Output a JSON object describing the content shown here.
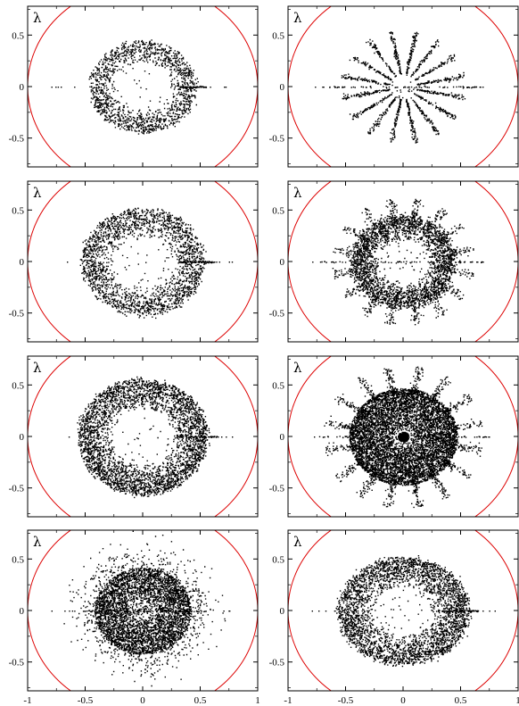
{
  "chart_data": {
    "type": "scatter",
    "panel_label": "λ",
    "grid": false,
    "layout": {
      "rows": 4,
      "cols": 2
    },
    "xlim": [
      -1,
      1
    ],
    "ylim": [
      -0.78,
      0.78
    ],
    "x_ticks": [
      -1,
      -0.5,
      0,
      0.5,
      1
    ],
    "x_tick_labels": [
      "-1",
      "-0.5",
      "0",
      "0.5",
      "1"
    ],
    "y_ticks": [
      -0.5,
      0,
      0.5
    ],
    "y_tick_labels": [
      "-0.5",
      "0",
      "0.5"
    ],
    "colors": {
      "unit_circle": "#dd0000",
      "points": "#000000"
    },
    "reference_curve": {
      "shape": "circle",
      "center": [
        0,
        0
      ],
      "radius": 1
    },
    "panels": [
      {
        "row": 0,
        "col": 0,
        "pattern": "ring",
        "inner_radius": 0.22,
        "outer_radius": 0.44,
        "spokes": 0,
        "ellipse_x": 1.05,
        "density": 1500,
        "interior_points": 15,
        "real_axis_segment": [
          0.32,
          0.55
        ]
      },
      {
        "row": 0,
        "col": 1,
        "pattern": "spokes",
        "inner_radius": 0.12,
        "outer_radius": 0.55,
        "spokes": 16,
        "ellipse_x": 1.0,
        "density": 1400,
        "interior_points": 20,
        "real_axis_segment": [
          -0.65,
          0.65
        ]
      },
      {
        "row": 1,
        "col": 0,
        "pattern": "ring",
        "inner_radius": 0.24,
        "outer_radius": 0.52,
        "spokes": 0,
        "ellipse_x": 1.02,
        "density": 2200,
        "interior_points": 25,
        "real_axis_segment": [
          0.3,
          0.62
        ]
      },
      {
        "row": 1,
        "col": 1,
        "pattern": "ring_spokes",
        "inner_radius": 0.22,
        "outer_radius": 0.45,
        "spokes": 16,
        "spike_radius": 0.62,
        "ellipse_x": 1.0,
        "density": 2600,
        "interior_points": 30,
        "real_axis_segment": [
          -0.75,
          0.75
        ]
      },
      {
        "row": 2,
        "col": 0,
        "pattern": "ring",
        "inner_radius": 0.26,
        "outer_radius": 0.56,
        "spokes": 0,
        "ellipse_x": 1.0,
        "density": 3600,
        "interior_points": 25,
        "real_axis_segment": [
          0.3,
          0.65
        ]
      },
      {
        "row": 2,
        "col": 1,
        "pattern": "dense_spiky",
        "inner_radius": 0.05,
        "outer_radius": 0.47,
        "spokes": 16,
        "spike_radius": 0.7,
        "ellipse_x": 1.0,
        "density": 6500,
        "interior_points": 350,
        "real_axis_segment": [
          -0.75,
          0.75
        ]
      },
      {
        "row": 3,
        "col": 0,
        "pattern": "disk",
        "inner_radius": 0.06,
        "outer_radius": 0.42,
        "spokes": 0,
        "ellipse_x": 1.0,
        "density": 4800,
        "interior_points": 40,
        "real_axis_segment": [
          -0.55,
          0.55
        ]
      },
      {
        "row": 3,
        "col": 1,
        "pattern": "ring",
        "inner_radius": 0.22,
        "outer_radius": 0.52,
        "spokes": 0,
        "ellipse_x": 1.1,
        "density": 3400,
        "interior_points": 25,
        "real_axis_segment": [
          0.3,
          0.65
        ]
      }
    ]
  }
}
